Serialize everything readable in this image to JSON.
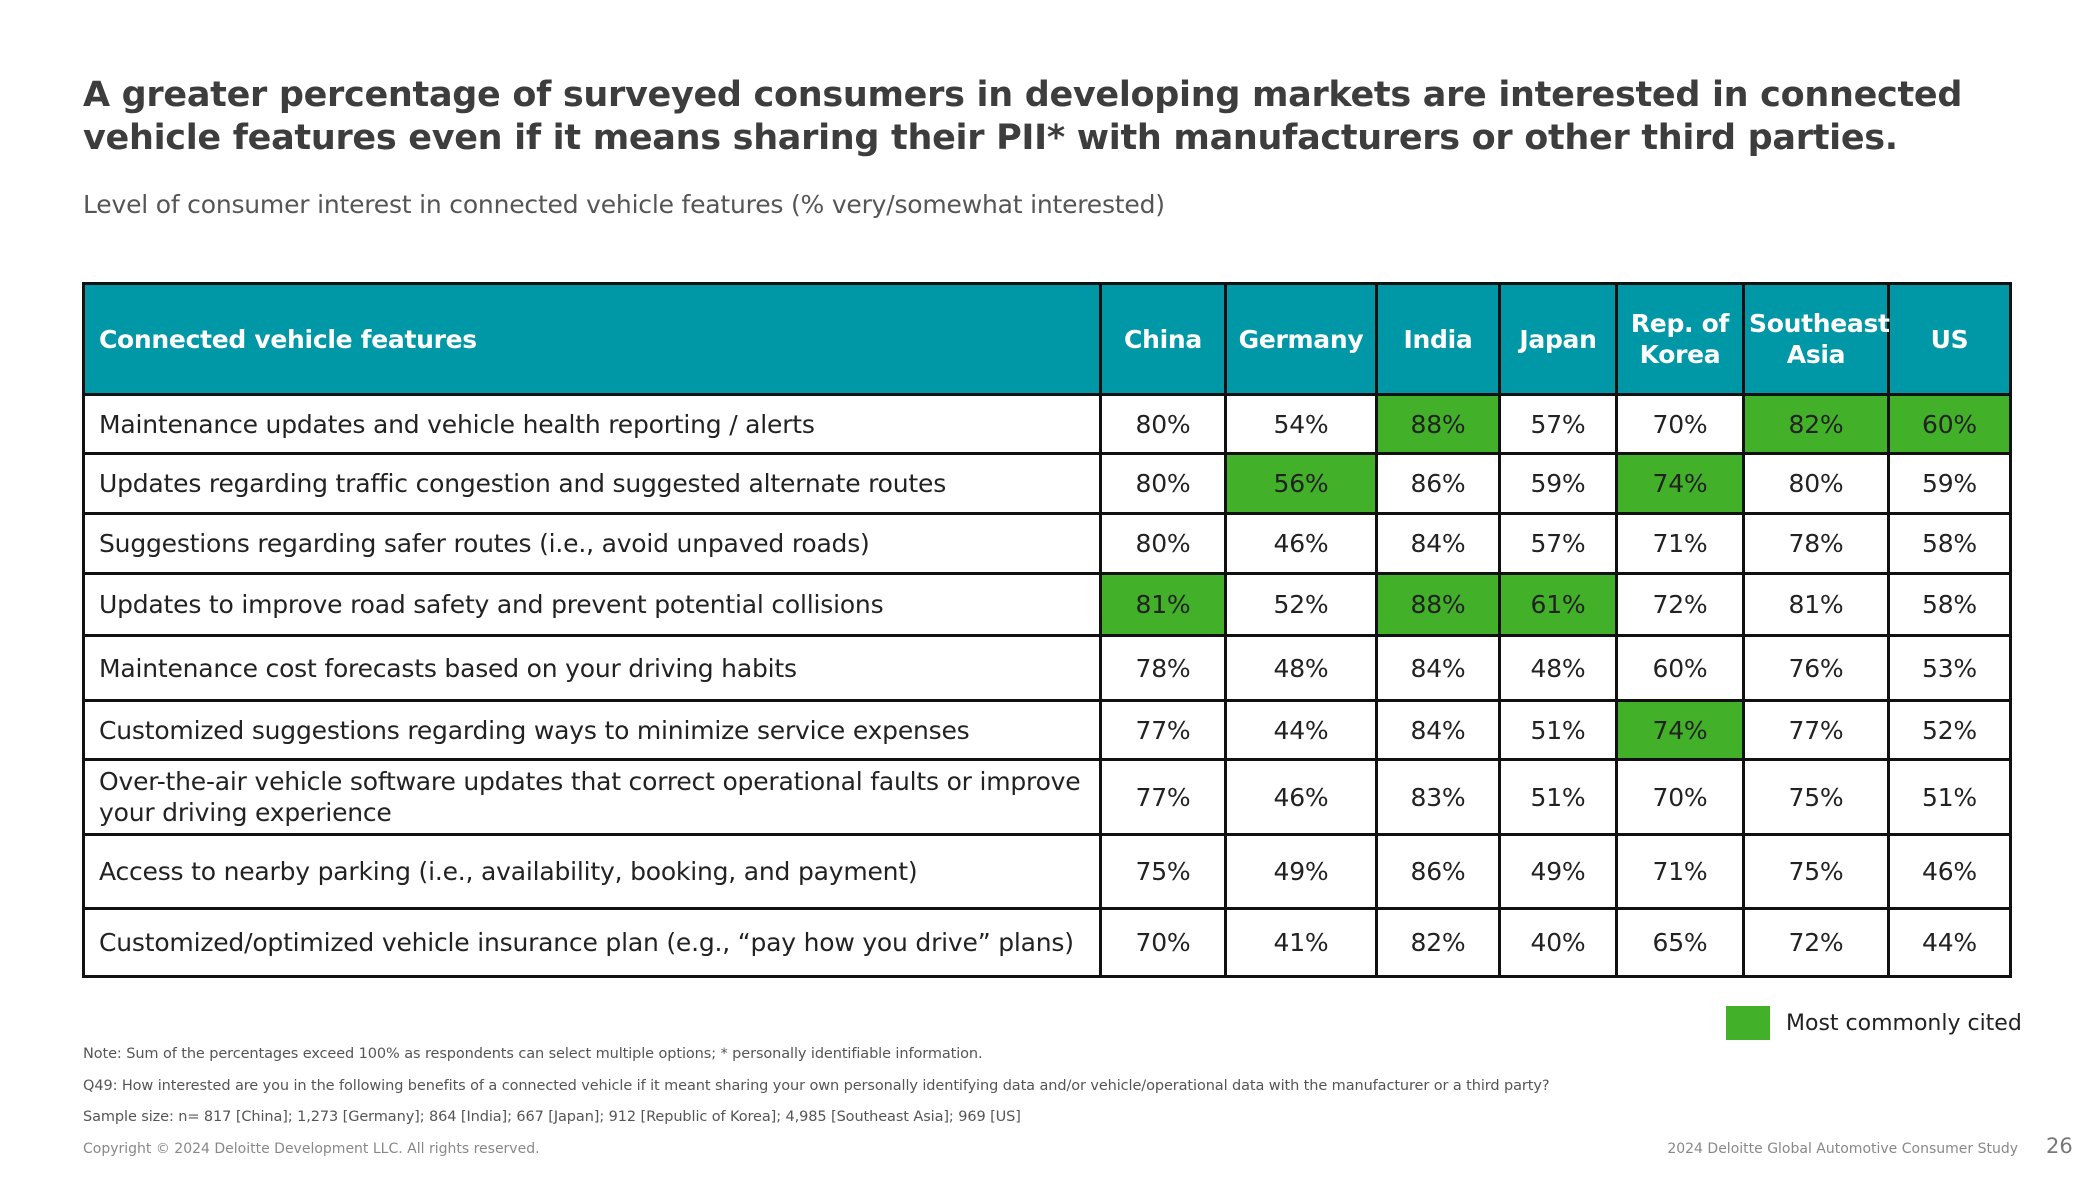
{
  "header": {
    "title": "A greater percentage of surveyed consumers in developing markets are interested in connected vehicle features even if it means sharing their PII* with manufacturers or other third parties.",
    "subtitle": "Level of consumer interest in connected vehicle features (% very/somewhat interested)"
  },
  "colors": {
    "header_bg": "#0097a7",
    "highlight": "#43b02a"
  },
  "chart_data": {
    "type": "table",
    "title": "Level of consumer interest in connected vehicle features (% very/somewhat interested)",
    "columns": [
      "Connected vehicle features",
      "China",
      "Germany",
      "India",
      "Japan",
      "Rep. of Korea",
      "Southeast Asia",
      "US"
    ],
    "rows": [
      {
        "feature": "Maintenance updates and vehicle health reporting / alerts",
        "values": [
          "80%",
          "54%",
          "88%",
          "57%",
          "70%",
          "82%",
          "60%"
        ],
        "highlight": [
          false,
          false,
          true,
          false,
          false,
          true,
          true
        ]
      },
      {
        "feature": "Updates regarding traffic congestion and suggested alternate routes",
        "values": [
          "80%",
          "56%",
          "86%",
          "59%",
          "74%",
          "80%",
          "59%"
        ],
        "highlight": [
          false,
          true,
          false,
          false,
          true,
          false,
          false
        ]
      },
      {
        "feature": "Suggestions regarding safer routes (i.e., avoid unpaved roads)",
        "values": [
          "80%",
          "46%",
          "84%",
          "57%",
          "71%",
          "78%",
          "58%"
        ],
        "highlight": [
          false,
          false,
          false,
          false,
          false,
          false,
          false
        ]
      },
      {
        "feature": "Updates to improve road safety and prevent potential collisions",
        "values": [
          "81%",
          "52%",
          "88%",
          "61%",
          "72%",
          "81%",
          "58%"
        ],
        "highlight": [
          true,
          false,
          true,
          true,
          false,
          false,
          false
        ]
      },
      {
        "feature": "Maintenance cost forecasts based on your driving habits",
        "values": [
          "78%",
          "48%",
          "84%",
          "48%",
          "60%",
          "76%",
          "53%"
        ],
        "highlight": [
          false,
          false,
          false,
          false,
          false,
          false,
          false
        ]
      },
      {
        "feature": "Customized suggestions regarding ways to minimize service expenses",
        "values": [
          "77%",
          "44%",
          "84%",
          "51%",
          "74%",
          "77%",
          "52%"
        ],
        "highlight": [
          false,
          false,
          false,
          false,
          true,
          false,
          false
        ]
      },
      {
        "feature": "Over-the-air vehicle software updates that correct operational faults or improve your driving experience",
        "values": [
          "77%",
          "46%",
          "83%",
          "51%",
          "70%",
          "75%",
          "51%"
        ],
        "highlight": [
          false,
          false,
          false,
          false,
          false,
          false,
          false
        ]
      },
      {
        "feature": "Access to nearby parking (i.e., availability, booking, and payment)",
        "values": [
          "75%",
          "49%",
          "86%",
          "49%",
          "71%",
          "75%",
          "46%"
        ],
        "highlight": [
          false,
          false,
          false,
          false,
          false,
          false,
          false
        ]
      },
      {
        "feature": "Customized/optimized vehicle insurance plan (e.g., “pay how you drive” plans)",
        "values": [
          "70%",
          "41%",
          "82%",
          "40%",
          "65%",
          "72%",
          "44%"
        ],
        "highlight": [
          false,
          false,
          false,
          false,
          false,
          false,
          false
        ]
      }
    ],
    "legend": "Most commonly cited"
  },
  "table": {
    "headers": [
      "Connected vehicle features",
      "China",
      "Germany",
      "India",
      "Japan",
      "Rep. of Korea",
      "Southeast Asia",
      "US"
    ]
  },
  "legend": {
    "label": "Most commonly cited"
  },
  "footer": {
    "note": "Note: Sum of the percentages exceed 100% as respondents can select multiple options; * personally identifiable information.",
    "question": "Q49: How interested are you in the following benefits of a connected vehicle if it meant sharing your own personally identifying data and/or vehicle/operational data with the manufacturer or a third party?",
    "sample": "Sample size: n= 817 [China]; 1,273 [Germany]; 864 [India]; 667 [Japan]; 912 [Republic of Korea]; 4,985 [Southeast Asia]; 969 [US]",
    "copyright": "Copyright © 2024 Deloitte Development LLC. All rights reserved.",
    "study": "2024 Deloitte Global Automotive Consumer Study",
    "page_number": "26"
  }
}
